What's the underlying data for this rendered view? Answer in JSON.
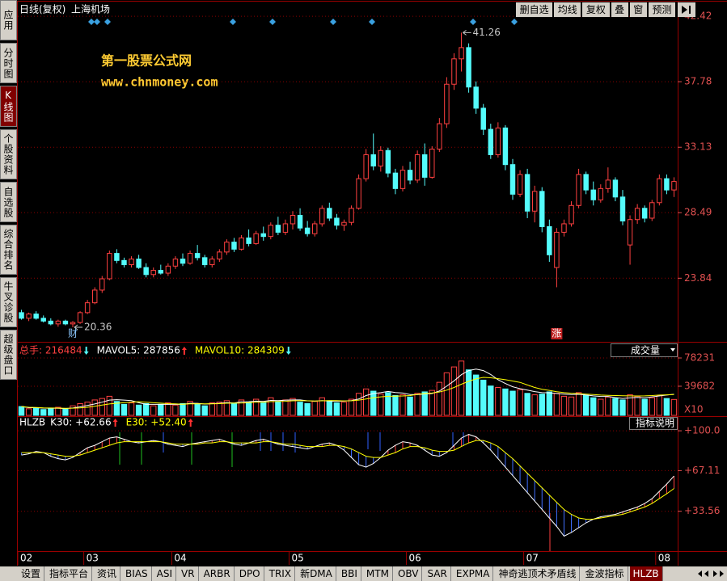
{
  "header": {
    "period": "日线(复权)",
    "stock": "上海机场"
  },
  "toolbar": {
    "buttons": [
      "删自选",
      "均线",
      "复权",
      "叠",
      "窗",
      "预测"
    ]
  },
  "sidebar": {
    "tabs": [
      "应用",
      "分时图",
      "K线图",
      "个股资料",
      "自选股",
      "综合排名",
      "牛叉诊股",
      "超级盘口"
    ],
    "active": 2
  },
  "watermark": {
    "name": "第一股票公式网",
    "url": "www.chnmoney.com",
    "color": "#ffcc33"
  },
  "arrow_colors": {
    "up": "#ff3030",
    "down": "#54fcfc"
  },
  "tabs": {
    "items": [
      "设置",
      "指标平台",
      "资讯",
      "BIAS",
      "ASI",
      "VR",
      "ARBR",
      "DPO",
      "TRIX",
      "新DMA",
      "BBI",
      "MTM",
      "OBV",
      "SAR",
      "EXPMA",
      "神奇逃顶术矛盾线",
      "金波指标",
      "HLZB"
    ],
    "active": 17
  },
  "chart_data": [
    {
      "type": "candlestick",
      "up_color": "#ff4040",
      "down_color": "#54fcfc",
      "axis_color": "#e05050",
      "grid": true,
      "ylim": [
        19.33,
        43.23
      ],
      "yticks": [
        23.84,
        28.49,
        33.13,
        37.78,
        42.42
      ],
      "markers": [
        {
          "text": "财",
          "index": 7,
          "color": "#8cc8ff",
          "boxed": false
        },
        {
          "text": "涨",
          "index": 73,
          "color": "#ffffff",
          "boxed": true
        }
      ],
      "ohlc": [
        [
          21.4,
          21.6,
          20.9,
          21.0
        ],
        [
          21.0,
          21.4,
          20.8,
          21.3
        ],
        [
          21.3,
          21.5,
          20.9,
          21.0
        ],
        [
          21.0,
          21.2,
          20.7,
          20.8
        ],
        [
          20.8,
          21.0,
          20.5,
          20.6
        ],
        [
          20.6,
          20.9,
          20.4,
          20.8
        ],
        [
          20.8,
          20.9,
          20.5,
          20.6
        ],
        [
          20.6,
          20.8,
          20.36,
          20.7
        ],
        [
          20.7,
          21.5,
          20.6,
          21.4
        ],
        [
          21.4,
          22.3,
          21.3,
          22.1
        ],
        [
          22.1,
          23.2,
          22.0,
          23.0
        ],
        [
          23.0,
          24.0,
          22.8,
          23.8
        ],
        [
          23.8,
          25.8,
          23.7,
          25.6
        ],
        [
          25.6,
          25.9,
          24.9,
          25.1
        ],
        [
          25.1,
          25.3,
          24.6,
          24.8
        ],
        [
          24.8,
          25.4,
          24.6,
          25.2
        ],
        [
          25.2,
          25.5,
          24.5,
          24.6
        ],
        [
          24.6,
          24.9,
          23.9,
          24.1
        ],
        [
          24.1,
          24.6,
          23.9,
          24.4
        ],
        [
          24.4,
          24.8,
          24.1,
          24.2
        ],
        [
          24.2,
          24.9,
          24.0,
          24.7
        ],
        [
          24.7,
          25.4,
          24.5,
          25.2
        ],
        [
          25.2,
          25.6,
          24.7,
          24.9
        ],
        [
          24.9,
          25.8,
          24.8,
          25.6
        ],
        [
          25.6,
          26.2,
          25.1,
          25.3
        ],
        [
          25.3,
          25.5,
          24.6,
          24.8
        ],
        [
          24.8,
          25.4,
          24.6,
          25.2
        ],
        [
          25.2,
          25.9,
          25.0,
          25.7
        ],
        [
          25.7,
          26.6,
          25.5,
          26.4
        ],
        [
          26.4,
          26.7,
          25.7,
          25.9
        ],
        [
          25.9,
          26.9,
          25.8,
          26.7
        ],
        [
          26.7,
          27.3,
          26.1,
          26.3
        ],
        [
          26.3,
          27.2,
          26.2,
          27.0
        ],
        [
          27.0,
          27.5,
          26.5,
          26.8
        ],
        [
          26.8,
          27.8,
          26.6,
          27.6
        ],
        [
          27.6,
          28.2,
          26.9,
          27.1
        ],
        [
          27.1,
          28.0,
          26.9,
          27.7
        ],
        [
          27.7,
          28.6,
          27.3,
          28.3
        ],
        [
          28.3,
          28.8,
          27.2,
          27.4
        ],
        [
          27.4,
          27.9,
          26.8,
          27.0
        ],
        [
          27.0,
          27.9,
          26.8,
          27.7
        ],
        [
          27.7,
          29.0,
          27.5,
          28.8
        ],
        [
          28.8,
          29.2,
          27.9,
          28.1
        ],
        [
          28.1,
          28.4,
          27.3,
          27.6
        ],
        [
          27.6,
          28.0,
          27.2,
          27.8
        ],
        [
          27.8,
          29.0,
          27.6,
          28.8
        ],
        [
          28.8,
          31.2,
          28.7,
          30.9
        ],
        [
          30.9,
          33.0,
          30.7,
          32.6
        ],
        [
          32.6,
          34.1,
          31.5,
          31.8
        ],
        [
          31.8,
          33.2,
          31.4,
          32.9
        ],
        [
          32.9,
          33.1,
          31.0,
          31.3
        ],
        [
          31.3,
          31.6,
          29.8,
          30.2
        ],
        [
          30.2,
          31.8,
          30.0,
          31.5
        ],
        [
          31.5,
          32.1,
          30.5,
          30.8
        ],
        [
          30.8,
          32.9,
          30.6,
          32.6
        ],
        [
          32.6,
          33.4,
          30.4,
          31.0
        ],
        [
          31.0,
          33.2,
          30.9,
          33.0
        ],
        [
          33.0,
          35.2,
          32.8,
          34.8
        ],
        [
          34.8,
          38.1,
          34.5,
          37.6
        ],
        [
          37.6,
          39.8,
          37.2,
          39.4
        ],
        [
          39.4,
          41.26,
          38.5,
          40.2
        ],
        [
          40.2,
          40.5,
          37.0,
          37.4
        ],
        [
          37.4,
          37.8,
          35.5,
          35.9
        ],
        [
          35.9,
          36.2,
          34.0,
          34.4
        ],
        [
          34.4,
          34.8,
          32.3,
          32.6
        ],
        [
          32.6,
          34.9,
          32.4,
          34.5
        ],
        [
          34.5,
          34.7,
          31.5,
          31.9
        ],
        [
          31.9,
          32.3,
          29.4,
          29.8
        ],
        [
          29.8,
          31.5,
          29.6,
          31.2
        ],
        [
          31.2,
          31.6,
          28.1,
          28.6
        ],
        [
          28.6,
          30.4,
          27.8,
          30.0
        ],
        [
          30.0,
          30.3,
          27.1,
          27.5
        ],
        [
          27.5,
          28.0,
          25.0,
          25.5
        ],
        [
          24.6,
          27.4,
          23.2,
          27.1
        ],
        [
          27.1,
          28.0,
          26.8,
          27.7
        ],
        [
          27.7,
          29.3,
          27.5,
          29.0
        ],
        [
          29.0,
          31.6,
          28.8,
          31.2
        ],
        [
          31.2,
          31.4,
          29.8,
          30.1
        ],
        [
          30.1,
          30.7,
          29.0,
          29.4
        ],
        [
          29.4,
          30.5,
          29.2,
          30.2
        ],
        [
          30.2,
          31.7,
          29.9,
          30.8
        ],
        [
          30.8,
          31.0,
          29.3,
          29.6
        ],
        [
          29.6,
          30.1,
          27.6,
          27.9
        ],
        [
          26.2,
          28.3,
          24.8,
          28.0
        ],
        [
          28.0,
          29.1,
          27.7,
          28.8
        ],
        [
          28.8,
          29.0,
          27.8,
          28.1
        ],
        [
          28.1,
          29.4,
          27.9,
          29.2
        ],
        [
          29.2,
          31.2,
          29.0,
          30.9
        ],
        [
          30.9,
          31.2,
          29.8,
          30.1
        ],
        [
          30.1,
          31.0,
          29.6,
          30.7
        ]
      ]
    },
    {
      "type": "bar",
      "label": "总手: 216484",
      "trend": "down",
      "label_color": "#ff4040",
      "unit": "X10",
      "selector": "成交量",
      "up_color": "#ff4040",
      "down_color": "#54fcfc",
      "axis_color": "#e05050",
      "grid": true,
      "ylim": [
        0,
        96950
      ],
      "yticks": [
        39682,
        78231
      ],
      "values": [
        12000,
        9000,
        10500,
        8000,
        9500,
        11000,
        8500,
        13000,
        16000,
        18000,
        21000,
        23000,
        26000,
        19000,
        15000,
        17000,
        14000,
        16000,
        13000,
        15000,
        17000,
        14000,
        16000,
        19000,
        15000,
        13000,
        17000,
        18000,
        20000,
        16000,
        21000,
        18000,
        22000,
        17000,
        24000,
        19000,
        21000,
        23000,
        18000,
        16000,
        19000,
        24000,
        20000,
        17000,
        18000,
        22000,
        30000,
        36000,
        33000,
        29000,
        31000,
        27000,
        28000,
        25000,
        30000,
        32000,
        34000,
        45000,
        58000,
        66000,
        74000,
        62000,
        55000,
        48000,
        40000,
        38000,
        36000,
        33000,
        35000,
        30000,
        28000,
        29000,
        32000,
        30000,
        26000,
        25000,
        31000,
        27000,
        24000,
        22000,
        25000,
        23000,
        21000,
        28000,
        26000,
        22000,
        24000,
        27000,
        23000,
        21648.4
      ],
      "series": [
        {
          "label": "MAVOL5: 287856",
          "trend": "up",
          "color": "#ffffff",
          "values": [
            12000,
            10500,
            10500,
            9900,
            9800,
            9600,
            9300,
            10000,
            11600,
            13500,
            15500,
            18000,
            20800,
            21400,
            20800,
            20000,
            17200,
            15000,
            15000,
            15000,
            15000,
            15000,
            15000,
            16400,
            16400,
            15400,
            16000,
            16400,
            17400,
            16800,
            18400,
            18600,
            19400,
            19000,
            20400,
            20000,
            20600,
            21000,
            21000,
            19800,
            19400,
            20000,
            19400,
            19200,
            19600,
            20200,
            22200,
            27000,
            29800,
            31000,
            32600,
            31200,
            30400,
            28400,
            28200,
            29200,
            29800,
            33200,
            39800,
            47000,
            55400,
            61000,
            63000,
            61000,
            55800,
            48600,
            43400,
            39000,
            36400,
            34400,
            32400,
            31000,
            30800,
            29800,
            29000,
            28400,
            28800,
            27800,
            26600,
            25800,
            25800,
            24200,
            23000,
            23800,
            24600,
            24000,
            25200,
            26400,
            27600,
            28785.6
          ]
        },
        {
          "label": "MAVOL10: 284309",
          "trend": "down",
          "color": "#ffff00",
          "values": [
            12000,
            11000,
            10800,
            10200,
            10000,
            9900,
            9700,
            9800,
            10300,
            11000,
            12500,
            14000,
            15500,
            16500,
            17200,
            17800,
            18600,
            18000,
            17200,
            16600,
            16000,
            15600,
            15200,
            15600,
            15800,
            15700,
            15800,
            16000,
            16500,
            16600,
            16800,
            17200,
            17800,
            18000,
            18700,
            18800,
            19200,
            19800,
            20000,
            19800,
            19600,
            19800,
            20000,
            20000,
            19700,
            19800,
            20800,
            22400,
            24000,
            25200,
            26000,
            26200,
            26400,
            27000,
            28600,
            29800,
            30400,
            31800,
            34400,
            38000,
            42400,
            46400,
            49800,
            51800,
            51200,
            50000,
            48600,
            46800,
            45000,
            41400,
            38000,
            35600,
            34000,
            32200,
            31000,
            30200,
            29600,
            29000,
            28400,
            27600,
            27200,
            27000,
            26800,
            26500,
            26400,
            26600,
            27000,
            27600,
            28000,
            28430.9
          ]
        }
      ]
    },
    {
      "type": "line",
      "name": "HLZB",
      "help": "指标说明",
      "axis_color": "#e05050",
      "grid": true,
      "hatch_below_color": "#4070ff",
      "hatch_above_color": "#ff4040",
      "ylim": [
        0.68,
        110.74
      ],
      "yticks": [
        {
          "value": 33.56,
          "label": "+33.56"
        },
        {
          "value": 67.11,
          "label": "+67.11"
        },
        {
          "value": 100,
          "label": "+100.0"
        }
      ],
      "categories": [
        "02",
        null,
        null,
        null,
        null,
        null,
        null,
        null,
        null,
        "03",
        null,
        null,
        null,
        null,
        null,
        null,
        null,
        null,
        null,
        null,
        null,
        "04",
        null,
        null,
        null,
        null,
        null,
        null,
        null,
        null,
        null,
        null,
        null,
        null,
        null,
        null,
        null,
        "05",
        null,
        null,
        null,
        null,
        null,
        null,
        null,
        null,
        null,
        null,
        null,
        null,
        null,
        null,
        null,
        "06",
        null,
        null,
        null,
        null,
        null,
        null,
        null,
        null,
        null,
        null,
        null,
        null,
        null,
        null,
        null,
        "07",
        null,
        null,
        null,
        null,
        null,
        null,
        null,
        null,
        null,
        null,
        null,
        null,
        null,
        null,
        null,
        null,
        null,
        "08",
        null,
        null
      ],
      "series": [
        {
          "label": "K30: +62.66",
          "trend": "up",
          "color": "#ffffff",
          "values": [
            80,
            81,
            83,
            82,
            79,
            77,
            76,
            78,
            82,
            86,
            88,
            91,
            94,
            95,
            93,
            91,
            90,
            91,
            92,
            91,
            89,
            88,
            87,
            89,
            90,
            91,
            92,
            93,
            91,
            89,
            88,
            90,
            92,
            93,
            91,
            89,
            88,
            87,
            86,
            85,
            87,
            89,
            90,
            88,
            84,
            78,
            72,
            70,
            73,
            78,
            84,
            88,
            91,
            90,
            88,
            84,
            80,
            79,
            82,
            88,
            94,
            97,
            95,
            90,
            84,
            77,
            70,
            63,
            56,
            49,
            42,
            35,
            28,
            21,
            13,
            16,
            20,
            24,
            27,
            29,
            30,
            31,
            33,
            35,
            37,
            40,
            44,
            50,
            56,
            62.66
          ]
        },
        {
          "label": "E30: +52.40",
          "trend": "up",
          "color": "#ffff00",
          "values": [
            82,
            82,
            82,
            82,
            81,
            80,
            79,
            79,
            80,
            82,
            84,
            86,
            88,
            90,
            91,
            91,
            91,
            91,
            91,
            91,
            90,
            89,
            89,
            89,
            89,
            90,
            90,
            91,
            91,
            90,
            90,
            90,
            90,
            91,
            91,
            90,
            89,
            89,
            88,
            87,
            87,
            87,
            88,
            88,
            87,
            85,
            82,
            79,
            78,
            78,
            80,
            82,
            85,
            87,
            87,
            86,
            84,
            83,
            83,
            84,
            87,
            90,
            92,
            92,
            90,
            87,
            82,
            77,
            71,
            65,
            59,
            53,
            47,
            41,
            35,
            31,
            28,
            27,
            27,
            28,
            29,
            30,
            31,
            33,
            35,
            37,
            40,
            44,
            48,
            52.4
          ]
        }
      ]
    }
  ]
}
